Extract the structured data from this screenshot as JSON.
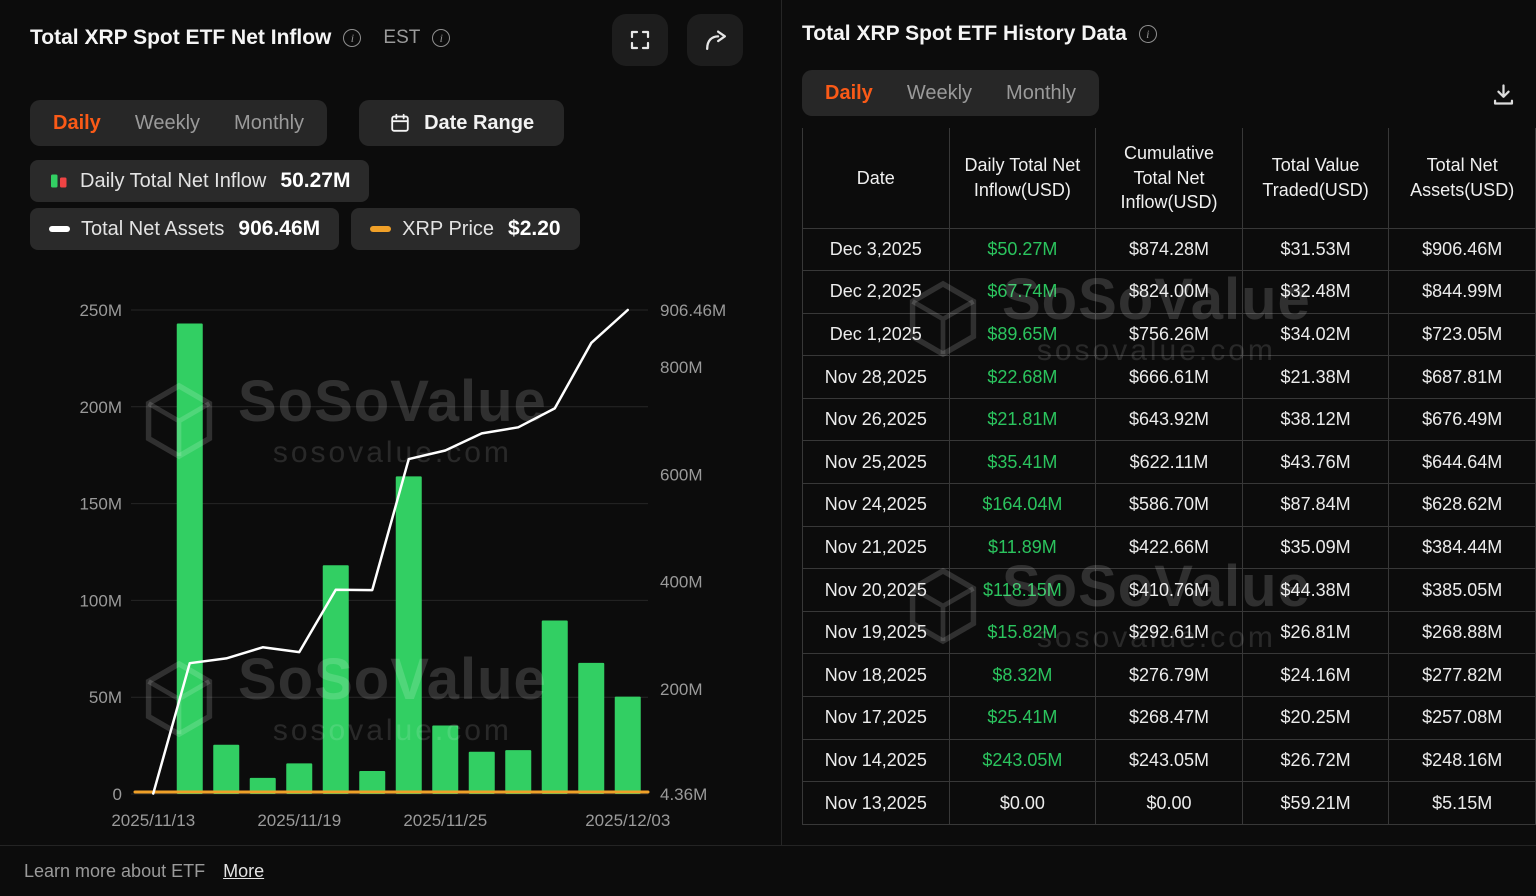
{
  "brand": {
    "name": "SoSoValue",
    "domain": "sosovalue.com"
  },
  "left_panel": {
    "title": "Total XRP Spot ETF Net Inflow",
    "timezone_label": "EST",
    "tabs": [
      {
        "label": "Daily",
        "active": true
      },
      {
        "label": "Weekly",
        "active": false
      },
      {
        "label": "Monthly",
        "active": false
      }
    ],
    "date_range_label": "Date Range",
    "legend": [
      {
        "label": "Daily Total Net Inflow",
        "value": "50.27M",
        "color": "#32cf63"
      },
      {
        "label": "Total Net Assets",
        "value": "906.46M",
        "color": "#ffffff"
      },
      {
        "label": "XRP Price",
        "value": "$2.20",
        "color": "#f0a028"
      }
    ]
  },
  "chart_data": {
    "type": "bar",
    "title": "Total XRP Spot ETF Net Inflow",
    "x": [
      "2025/11/13",
      "2025/11/14",
      "2025/11/17",
      "2025/11/18",
      "2025/11/19",
      "2025/11/20",
      "2025/11/21",
      "2025/11/24",
      "2025/11/25",
      "2025/11/26",
      "2025/11/28",
      "2025/12/01",
      "2025/12/02",
      "2025/12/03"
    ],
    "series": [
      {
        "name": "Daily Total Net Inflow",
        "type": "bar",
        "axis": "left",
        "unit": "USD millions",
        "color": "#32cf63",
        "values": [
          0,
          243.05,
          25.41,
          8.32,
          15.82,
          118.15,
          11.89,
          164.04,
          35.41,
          21.81,
          22.68,
          89.65,
          67.74,
          50.27
        ]
      },
      {
        "name": "Total Net Assets",
        "type": "line",
        "axis": "right",
        "unit": "USD millions",
        "color": "#ffffff",
        "values": [
          5.15,
          248.16,
          257.08,
          277.82,
          268.88,
          385.05,
          384.44,
          628.62,
          644.64,
          676.49,
          687.81,
          723.05,
          844.99,
          906.46
        ]
      },
      {
        "name": "XRP Price",
        "type": "line",
        "axis": "price",
        "unit": "USD",
        "color": "#f0a028",
        "current": 2.2
      }
    ],
    "left_axis": {
      "min": 0,
      "max": 250,
      "ticks": [
        {
          "value": 250,
          "label": "250M"
        },
        {
          "value": 200,
          "label": "200M"
        },
        {
          "value": 150,
          "label": "150M"
        },
        {
          "value": 100,
          "label": "100M"
        },
        {
          "value": 50,
          "label": "50M"
        },
        {
          "value": 0,
          "label": "0"
        }
      ]
    },
    "right_axis": {
      "min": 4.36,
      "max": 906.46,
      "ticks": [
        {
          "value": 906.46,
          "label": "906.46M"
        },
        {
          "value": 800,
          "label": "800M"
        },
        {
          "value": 600,
          "label": "600M"
        },
        {
          "value": 400,
          "label": "400M"
        },
        {
          "value": 200,
          "label": "200M"
        },
        {
          "value": 4.36,
          "label": "4.36M"
        }
      ]
    },
    "x_ticks": [
      {
        "index": 0,
        "label": "2025/11/13"
      },
      {
        "index": 4,
        "label": "2025/11/19"
      },
      {
        "index": 8,
        "label": "2025/11/25"
      },
      {
        "index": 13,
        "label": "2025/12/03"
      }
    ],
    "grid": true,
    "legend_position": "top-left"
  },
  "right_panel": {
    "title": "Total XRP Spot ETF History Data",
    "tabs": [
      {
        "label": "Daily",
        "active": true
      },
      {
        "label": "Weekly",
        "active": false
      },
      {
        "label": "Monthly",
        "active": false
      }
    ],
    "table": {
      "headers": [
        "Date",
        "Daily Total Net Inflow(USD)",
        "Cumulative Total Net Inflow(USD)",
        "Total Value Traded(USD)",
        "Total Net Assets(USD)"
      ],
      "rows": [
        [
          "Dec 3,2025",
          "$50.27M",
          "$874.28M",
          "$31.53M",
          "$906.46M"
        ],
        [
          "Dec 2,2025",
          "$67.74M",
          "$824.00M",
          "$32.48M",
          "$844.99M"
        ],
        [
          "Dec 1,2025",
          "$89.65M",
          "$756.26M",
          "$34.02M",
          "$723.05M"
        ],
        [
          "Nov 28,2025",
          "$22.68M",
          "$666.61M",
          "$21.38M",
          "$687.81M"
        ],
        [
          "Nov 26,2025",
          "$21.81M",
          "$643.92M",
          "$38.12M",
          "$676.49M"
        ],
        [
          "Nov 25,2025",
          "$35.41M",
          "$622.11M",
          "$43.76M",
          "$644.64M"
        ],
        [
          "Nov 24,2025",
          "$164.04M",
          "$586.70M",
          "$87.84M",
          "$628.62M"
        ],
        [
          "Nov 21,2025",
          "$11.89M",
          "$422.66M",
          "$35.09M",
          "$384.44M"
        ],
        [
          "Nov 20,2025",
          "$118.15M",
          "$410.76M",
          "$44.38M",
          "$385.05M"
        ],
        [
          "Nov 19,2025",
          "$15.82M",
          "$292.61M",
          "$26.81M",
          "$268.88M"
        ],
        [
          "Nov 18,2025",
          "$8.32M",
          "$276.79M",
          "$24.16M",
          "$277.82M"
        ],
        [
          "Nov 17,2025",
          "$25.41M",
          "$268.47M",
          "$20.25M",
          "$257.08M"
        ],
        [
          "Nov 14,2025",
          "$243.05M",
          "$243.05M",
          "$26.72M",
          "$248.16M"
        ],
        [
          "Nov 13,2025",
          "$0.00",
          "$0.00",
          "$59.21M",
          "$5.15M"
        ]
      ]
    }
  },
  "footer": {
    "text": "Learn more about ETF",
    "link_label": "More"
  }
}
